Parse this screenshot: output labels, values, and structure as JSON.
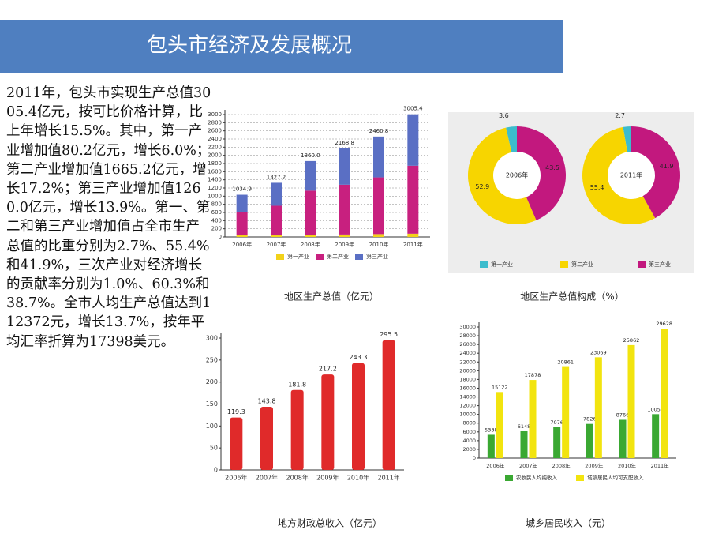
{
  "header": {
    "title": "包头市经济及发展概况"
  },
  "text": {
    "body": "2011年，包头市实现生产总值3005.4亿元，按可比价格计算，比上年增长15.5%。其中，第一产业增加值80.2亿元，增长6.0%；第二产业增加值1665.2亿元，增长17.2%；第三产业增加值1260.0亿元，增长13.9%。第一、第二和第三产业增加值占全市生产总值的比重分别为2.7%、55.4%和41.9%，三次产业对经济增长的贡献率分别为1.0%、60.3%和38.7%。全市人均生产总值达到112372元，增长13.7%，按年平均汇率折算为17398美元。"
  },
  "chart_data": [
    {
      "type": "stacked_bar",
      "title": "地区生产总值（亿元）",
      "categories": [
        "2006年",
        "2007年",
        "2008年",
        "2009年",
        "2010年",
        "2011年"
      ],
      "series": [
        {
          "name": "第一产业",
          "color": "#f2d21a",
          "values": [
            40,
            45,
            55,
            60,
            70,
            80.2
          ]
        },
        {
          "name": "第二产业",
          "color": "#c8207f",
          "values": [
            560,
            720,
            1080,
            1220,
            1390,
            1665.2
          ]
        },
        {
          "name": "第三产业",
          "color": "#5a6fc4",
          "values": [
            435,
            562,
            725,
            889,
            1001,
            1260.0
          ]
        }
      ],
      "totals": [
        1034.9,
        1327.2,
        1860.0,
        2168.8,
        2460.8,
        3005.4
      ],
      "total_labels": [
        "1034.9",
        "1327.2",
        "1860.0",
        "2168.8",
        "2460.8",
        "3005.4"
      ],
      "ylim": [
        0,
        3000
      ],
      "yticks": [
        0,
        200,
        400,
        600,
        800,
        1000,
        1200,
        1400,
        1600,
        1800,
        2000,
        2200,
        2400,
        2600,
        2800,
        3000
      ],
      "grid": true
    },
    {
      "type": "donut",
      "title": "地区生产总值构成（%）",
      "categories": [
        "2006年",
        "2011年"
      ],
      "series": [
        {
          "name": "第一产业",
          "color": "#3cbccd",
          "values": [
            3.6,
            2.7
          ]
        },
        {
          "name": "第二产业",
          "color": "#f7d500",
          "values": [
            52.9,
            55.4
          ]
        },
        {
          "name": "第三产业",
          "color": "#c2187e",
          "values": [
            43.5,
            41.9
          ]
        }
      ]
    },
    {
      "type": "bar",
      "title": "地方财政总收入（亿元）",
      "categories": [
        "2006年",
        "2007年",
        "2008年",
        "2009年",
        "2010年",
        "2011年"
      ],
      "values": [
        119.3,
        143.8,
        181.8,
        217.2,
        243.3,
        295.5
      ],
      "color": "#e02a2a",
      "ylim": [
        0,
        300
      ],
      "yticks": [
        0,
        50,
        100,
        150,
        200,
        250,
        300
      ]
    },
    {
      "type": "grouped_bar",
      "title": "城乡居民收入（元）",
      "categories": [
        "2006年",
        "2007年",
        "2008年",
        "2009年",
        "2010年",
        "2011年"
      ],
      "series": [
        {
          "name": "农牧民人均纯收入",
          "color": "#3aa832",
          "values": [
            5338,
            6148,
            7076,
            7826,
            8766,
            10059
          ]
        },
        {
          "name": "城镇居民人均可支配收入",
          "color": "#f2e40f",
          "values": [
            15122,
            17878,
            20861,
            23069,
            25862,
            29628
          ]
        }
      ],
      "ylim": [
        0,
        30000
      ],
      "yticks": [
        0,
        2000,
        4000,
        6000,
        8000,
        10000,
        12000,
        14000,
        16000,
        18000,
        20000,
        22000,
        24000,
        26000,
        28000,
        30000
      ]
    }
  ]
}
